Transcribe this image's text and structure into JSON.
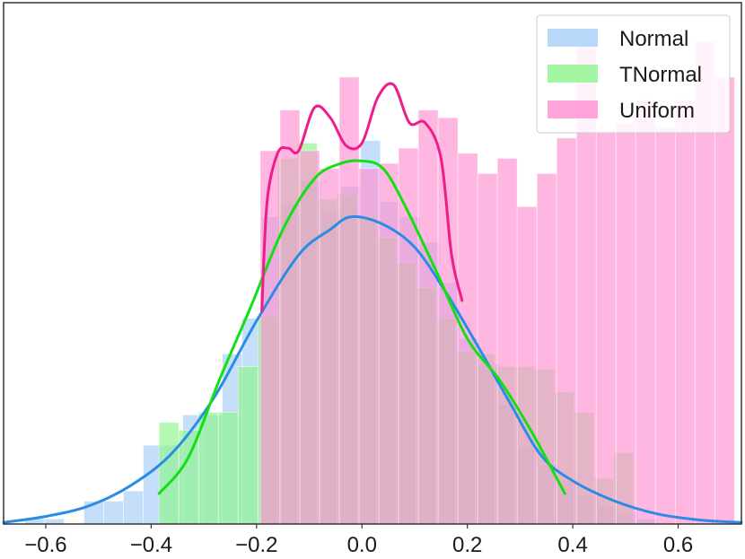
{
  "chart_data": {
    "type": "histogram",
    "xlim": [
      -0.68,
      0.72
    ],
    "ylim": [
      0,
      1
    ],
    "x_ticks": [
      -0.6,
      -0.4,
      -0.2,
      0.0,
      0.2,
      0.4,
      0.6
    ],
    "x_tick_labels": [
      "−0.6",
      "−0.4",
      "−0.2",
      "0.0",
      "0.2",
      "0.4",
      "0.6"
    ],
    "y_ticks": [],
    "grid": false,
    "legend_position": "top-right",
    "bin_width": 0.0375,
    "series": [
      {
        "name": "Normal",
        "bar_color": "#a6cdf7",
        "line_color": "#2b8ce6",
        "bins_start": -0.64,
        "bar_heights": [
          0.01,
          0.01,
          0.0,
          0.045,
          0.045,
          0.065,
          0.155,
          0.155,
          0.215,
          0.215,
          0.335,
          0.405,
          0.605,
          0.63,
          0.675,
          0.615,
          0.665,
          0.755,
          0.635,
          0.605,
          0.555,
          0.475,
          0.365,
          0.315,
          0.235,
          0.15,
          0.115,
          0.085,
          0.055,
          0.035,
          0.02,
          0.01
        ],
        "kde": {
          "x": [
            -0.68,
            -0.6,
            -0.52,
            -0.44,
            -0.36,
            -0.28,
            -0.2,
            -0.12,
            -0.06,
            -0.02,
            0.04,
            0.1,
            0.16,
            0.22,
            0.28,
            0.34,
            0.4,
            0.48,
            0.56,
            0.64,
            0.72
          ],
          "y": [
            0.003,
            0.015,
            0.035,
            0.075,
            0.14,
            0.25,
            0.4,
            0.53,
            0.58,
            0.605,
            0.59,
            0.545,
            0.455,
            0.35,
            0.24,
            0.135,
            0.085,
            0.045,
            0.02,
            0.008,
            0.003
          ]
        }
      },
      {
        "name": "TNormal",
        "bar_color": "#8cf58c",
        "line_color": "#12e012",
        "bins_start": -0.385,
        "bar_heights": [
          0.2,
          0.185,
          0.22,
          0.22,
          0.31,
          0.41,
          0.72,
          0.75,
          0.64,
          0.65,
          0.605,
          0.565,
          0.515,
          0.465,
          0.405,
          0.34,
          0.335,
          0.31,
          0.31,
          0.305,
          0.26,
          0.22,
          0.09,
          0.14
        ],
        "kde": {
          "x": [
            -0.385,
            -0.33,
            -0.27,
            -0.21,
            -0.15,
            -0.09,
            -0.04,
            0.0,
            0.04,
            0.08,
            0.14,
            0.2,
            0.26,
            0.32,
            0.385
          ],
          "y": [
            0.06,
            0.13,
            0.285,
            0.43,
            0.58,
            0.68,
            0.71,
            0.715,
            0.7,
            0.63,
            0.5,
            0.365,
            0.285,
            0.185,
            0.06
          ]
        }
      },
      {
        "name": "Uniform",
        "bar_color": "#ff8fcf",
        "line_color": "#ee1d8a",
        "bins_start": -0.193,
        "bar_heights": [
          0.735,
          0.815,
          0.735,
          0.7,
          0.88,
          0.7,
          0.71,
          0.74,
          0.815,
          0.8,
          0.73,
          0.69,
          0.72,
          0.625,
          0.69,
          0.76,
          0.94,
          0.77,
          0.79,
          0.835,
          0.78,
          0.835,
          0.95,
          0.88
        ],
        "kde": {
          "x": [
            -0.19,
            -0.18,
            -0.16,
            -0.14,
            -0.12,
            -0.09,
            -0.06,
            -0.03,
            0.0,
            0.03,
            0.06,
            0.09,
            0.12,
            0.15,
            0.17,
            0.19
          ],
          "y": [
            0.42,
            0.635,
            0.73,
            0.74,
            0.735,
            0.82,
            0.8,
            0.745,
            0.75,
            0.84,
            0.865,
            0.79,
            0.79,
            0.72,
            0.53,
            0.44
          ]
        }
      }
    ]
  }
}
